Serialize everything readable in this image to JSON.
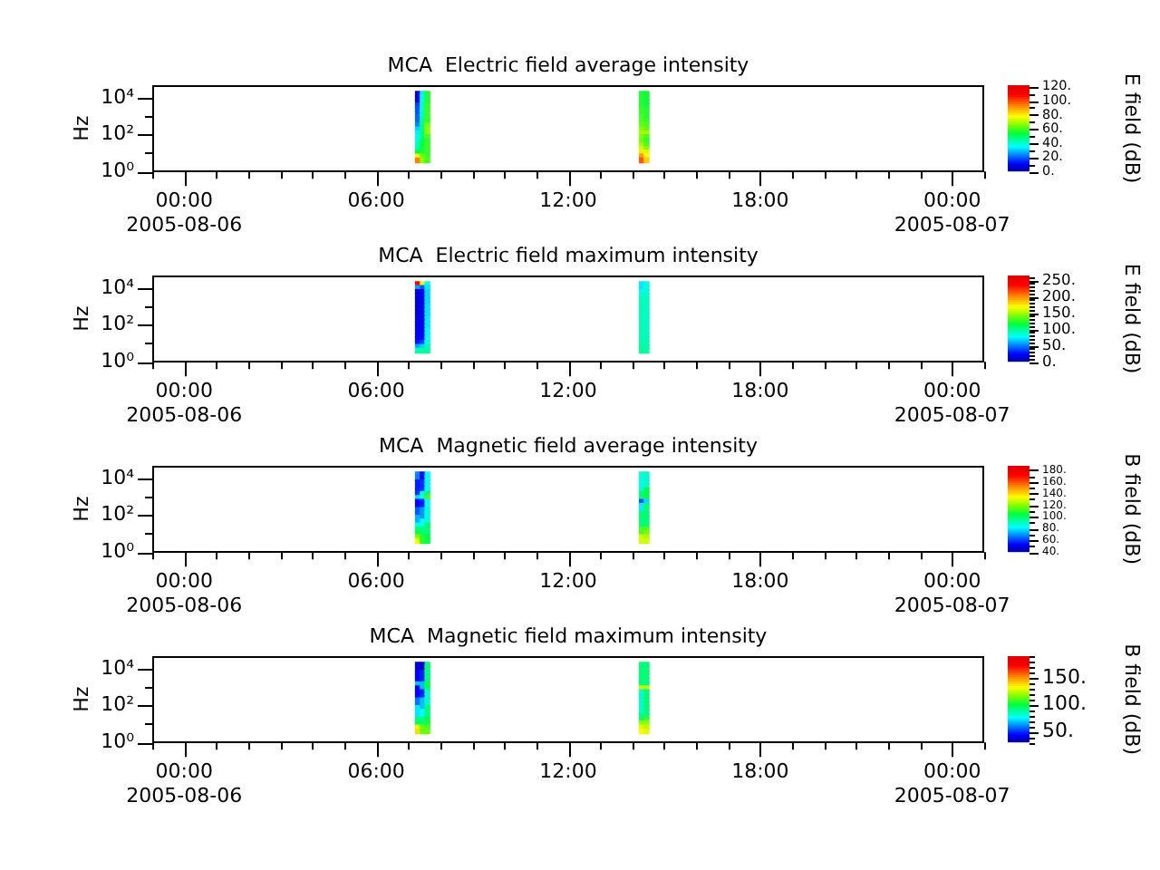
{
  "chart_data": [
    {
      "type": "scatter",
      "title": "MCA  Electric field average intensity",
      "ylabel": "Hz",
      "clabel": "E field (dB)",
      "marker": "square",
      "log": "y",
      "x": [
        "2005-08-06T07:18",
        "2005-08-06T07:18",
        "2005-08-06T07:18",
        "2005-08-06T07:18",
        "2005-08-06T07:18",
        "2005-08-06T07:18",
        "2005-08-06T07:18",
        "2005-08-06T07:18",
        "2005-08-06T07:18",
        "2005-08-06T07:18",
        "2005-08-06T07:18",
        "2005-08-06T07:18",
        "2005-08-06T07:18",
        "2005-08-06T07:18",
        "2005-08-06T07:18",
        "2005-08-06T07:18",
        "2005-08-06T07:18",
        "2005-08-06T07:18",
        "2005-08-06T07:27",
        "2005-08-06T07:27",
        "2005-08-06T07:27",
        "2005-08-06T07:27",
        "2005-08-06T07:27",
        "2005-08-06T07:27",
        "2005-08-06T07:27",
        "2005-08-06T07:27",
        "2005-08-06T07:27",
        "2005-08-06T07:27",
        "2005-08-06T07:27",
        "2005-08-06T07:27",
        "2005-08-06T07:27",
        "2005-08-06T07:27",
        "2005-08-06T07:27",
        "2005-08-06T07:27",
        "2005-08-06T07:27",
        "2005-08-06T07:27",
        "2005-08-06T07:36",
        "2005-08-06T07:36",
        "2005-08-06T07:36",
        "2005-08-06T07:36",
        "2005-08-06T07:36",
        "2005-08-06T07:36",
        "2005-08-06T07:36",
        "2005-08-06T07:36",
        "2005-08-06T07:36",
        "2005-08-06T07:36",
        "2005-08-06T07:36",
        "2005-08-06T07:36",
        "2005-08-06T07:36",
        "2005-08-06T07:36",
        "2005-08-06T07:36",
        "2005-08-06T07:36",
        "2005-08-06T07:36",
        "2005-08-06T07:36",
        "2005-08-06T14:18",
        "2005-08-06T14:18",
        "2005-08-06T14:18",
        "2005-08-06T14:18",
        "2005-08-06T14:18",
        "2005-08-06T14:18",
        "2005-08-06T14:18",
        "2005-08-06T14:18",
        "2005-08-06T14:18",
        "2005-08-06T14:18",
        "2005-08-06T14:18",
        "2005-08-06T14:18",
        "2005-08-06T14:18",
        "2005-08-06T14:18",
        "2005-08-06T14:18",
        "2005-08-06T14:18",
        "2005-08-06T14:18",
        "2005-08-06T14:18",
        "2005-08-06T14:27",
        "2005-08-06T14:27",
        "2005-08-06T14:27",
        "2005-08-06T14:27",
        "2005-08-06T14:27",
        "2005-08-06T14:27",
        "2005-08-06T14:27",
        "2005-08-06T14:27",
        "2005-08-06T14:27",
        "2005-08-06T14:27",
        "2005-08-06T14:27",
        "2005-08-06T14:27",
        "2005-08-06T14:27",
        "2005-08-06T14:27",
        "2005-08-06T14:27",
        "2005-08-06T14:27",
        "2005-08-06T14:27",
        "2005-08-06T14:27"
      ],
      "values": [
        17000,
        10500,
        6400,
        3900,
        2400,
        1500,
        890,
        550,
        330,
        200,
        120,
        76,
        46,
        28,
        17,
        11,
        6.5,
        4.0,
        17000,
        10500,
        6400,
        3900,
        2400,
        1500,
        890,
        550,
        330,
        200,
        120,
        76,
        46,
        28,
        17,
        11,
        6.5,
        4.0,
        17000,
        10500,
        6400,
        3900,
        2400,
        1500,
        890,
        550,
        330,
        200,
        120,
        76,
        46,
        28,
        17,
        11,
        6.5,
        4.0,
        17000,
        10500,
        6400,
        3900,
        2400,
        1500,
        890,
        550,
        330,
        200,
        120,
        76,
        46,
        28,
        17,
        11,
        6.5,
        4.0,
        17000,
        10500,
        6400,
        3900,
        2400,
        1500,
        890,
        550,
        330,
        200,
        120,
        76,
        46,
        28,
        17,
        11,
        6.5,
        4.0
      ],
      "cvalues": [
        8,
        8,
        10,
        18,
        20,
        20,
        22,
        22,
        25,
        32,
        35,
        36,
        40,
        42,
        44,
        55,
        80,
        95,
        35,
        36,
        40,
        42,
        42,
        42,
        44,
        46,
        48,
        48,
        50,
        50,
        52,
        55,
        56,
        58,
        65,
        68,
        58,
        58,
        58,
        60,
        60,
        60,
        60,
        60,
        66,
        68,
        68,
        62,
        60,
        60,
        60,
        60,
        60,
        62,
        58,
        58,
        58,
        58,
        60,
        60,
        62,
        62,
        64,
        68,
        70,
        68,
        66,
        70,
        75,
        82,
        92,
        100,
        56,
        56,
        56,
        56,
        58,
        58,
        58,
        60,
        62,
        64,
        70,
        62,
        60,
        62,
        68,
        76,
        80,
        85
      ],
      "xlim": [
        "2005-08-05T23:00",
        "2005-08-07T01:00"
      ],
      "xticks": [
        {
          "value": "2005-08-05T23:00",
          "label": null
        },
        {
          "value": "2005-08-06T00:00",
          "label": "00:00\n2005-08-06"
        },
        {
          "value": "2005-08-06T01:00",
          "label": null
        },
        {
          "value": "2005-08-06T02:00",
          "label": null
        },
        {
          "value": "2005-08-06T03:00",
          "label": null
        },
        {
          "value": "2005-08-06T04:00",
          "label": null
        },
        {
          "value": "2005-08-06T05:00",
          "label": null
        },
        {
          "value": "2005-08-06T06:00",
          "label": "06:00"
        },
        {
          "value": "2005-08-06T07:00",
          "label": null
        },
        {
          "value": "2005-08-06T08:00",
          "label": null
        },
        {
          "value": "2005-08-06T09:00",
          "label": null
        },
        {
          "value": "2005-08-06T10:00",
          "label": null
        },
        {
          "value": "2005-08-06T11:00",
          "label": null
        },
        {
          "value": "2005-08-06T12:00",
          "label": "12:00"
        },
        {
          "value": "2005-08-06T13:00",
          "label": null
        },
        {
          "value": "2005-08-06T14:00",
          "label": null
        },
        {
          "value": "2005-08-06T15:00",
          "label": null
        },
        {
          "value": "2005-08-06T16:00",
          "label": null
        },
        {
          "value": "2005-08-06T17:00",
          "label": null
        },
        {
          "value": "2005-08-06T18:00",
          "label": "18:00"
        },
        {
          "value": "2005-08-06T19:00",
          "label": null
        },
        {
          "value": "2005-08-06T20:00",
          "label": null
        },
        {
          "value": "2005-08-06T21:00",
          "label": null
        },
        {
          "value": "2005-08-06T22:00",
          "label": null
        },
        {
          "value": "2005-08-06T23:00",
          "label": null
        },
        {
          "value": "2005-08-07T00:00",
          "label": "00:00\n2005-08-07"
        },
        {
          "value": "2005-08-07T01:00",
          "label": null
        }
      ],
      "ylim": [
        1,
        50000
      ],
      "yticks": [
        {
          "value": 1,
          "label": "10⁰"
        },
        {
          "value": 10,
          "label": null
        },
        {
          "value": 100,
          "label": "10²"
        },
        {
          "value": 1000,
          "label": null
        },
        {
          "value": 10000,
          "label": "10⁴"
        }
      ],
      "clim": [
        0,
        122
      ],
      "cticks": [
        {
          "value": 0,
          "label": "0."
        },
        {
          "value": 10,
          "label": null
        },
        {
          "value": 20,
          "label": "20."
        },
        {
          "value": 30,
          "label": null
        },
        {
          "value": 40,
          "label": "40."
        },
        {
          "value": 50,
          "label": null
        },
        {
          "value": 60,
          "label": "60."
        },
        {
          "value": 70,
          "label": null
        },
        {
          "value": 80,
          "label": "80."
        },
        {
          "value": 90,
          "label": null
        },
        {
          "value": 100,
          "label": "100."
        },
        {
          "value": 110,
          "label": null
        },
        {
          "value": 120,
          "label": "120."
        }
      ]
    },
    {
      "type": "scatter",
      "title": "MCA  Electric field maximum intensity",
      "ylabel": "Hz",
      "clabel": "E field (dB)",
      "marker": "square",
      "log": "y",
      "x": [
        "2005-08-06T07:18",
        "2005-08-06T07:18",
        "2005-08-06T07:18",
        "2005-08-06T07:18",
        "2005-08-06T07:18",
        "2005-08-06T07:18",
        "2005-08-06T07:18",
        "2005-08-06T07:18",
        "2005-08-06T07:18",
        "2005-08-06T07:18",
        "2005-08-06T07:18",
        "2005-08-06T07:18",
        "2005-08-06T07:18",
        "2005-08-06T07:18",
        "2005-08-06T07:18",
        "2005-08-06T07:18",
        "2005-08-06T07:18",
        "2005-08-06T07:18",
        "2005-08-06T07:27",
        "2005-08-06T07:27",
        "2005-08-06T07:27",
        "2005-08-06T07:27",
        "2005-08-06T07:27",
        "2005-08-06T07:27",
        "2005-08-06T07:27",
        "2005-08-06T07:27",
        "2005-08-06T07:27",
        "2005-08-06T07:27",
        "2005-08-06T07:27",
        "2005-08-06T07:27",
        "2005-08-06T07:27",
        "2005-08-06T07:27",
        "2005-08-06T07:27",
        "2005-08-06T07:27",
        "2005-08-06T07:27",
        "2005-08-06T07:27",
        "2005-08-06T07:36",
        "2005-08-06T07:36",
        "2005-08-06T07:36",
        "2005-08-06T07:36",
        "2005-08-06T07:36",
        "2005-08-06T07:36",
        "2005-08-06T07:36",
        "2005-08-06T07:36",
        "2005-08-06T07:36",
        "2005-08-06T07:36",
        "2005-08-06T07:36",
        "2005-08-06T07:36",
        "2005-08-06T07:36",
        "2005-08-06T07:36",
        "2005-08-06T07:36",
        "2005-08-06T07:36",
        "2005-08-06T07:36",
        "2005-08-06T07:36",
        "2005-08-06T14:18",
        "2005-08-06T14:18",
        "2005-08-06T14:18",
        "2005-08-06T14:18",
        "2005-08-06T14:18",
        "2005-08-06T14:18",
        "2005-08-06T14:18",
        "2005-08-06T14:18",
        "2005-08-06T14:18",
        "2005-08-06T14:18",
        "2005-08-06T14:18",
        "2005-08-06T14:18",
        "2005-08-06T14:18",
        "2005-08-06T14:18",
        "2005-08-06T14:18",
        "2005-08-06T14:18",
        "2005-08-06T14:18",
        "2005-08-06T14:18",
        "2005-08-06T14:27",
        "2005-08-06T14:27",
        "2005-08-06T14:27",
        "2005-08-06T14:27",
        "2005-08-06T14:27",
        "2005-08-06T14:27",
        "2005-08-06T14:27",
        "2005-08-06T14:27",
        "2005-08-06T14:27",
        "2005-08-06T14:27",
        "2005-08-06T14:27",
        "2005-08-06T14:27",
        "2005-08-06T14:27",
        "2005-08-06T14:27",
        "2005-08-06T14:27",
        "2005-08-06T14:27",
        "2005-08-06T14:27",
        "2005-08-06T14:27"
      ],
      "values": [
        17000,
        10500,
        6400,
        3900,
        2400,
        1500,
        890,
        550,
        330,
        200,
        120,
        76,
        46,
        28,
        17,
        11,
        6.5,
        4.0,
        17000,
        10500,
        6400,
        3900,
        2400,
        1500,
        890,
        550,
        330,
        200,
        120,
        76,
        46,
        28,
        17,
        11,
        6.5,
        4.0,
        17000,
        10500,
        6400,
        3900,
        2400,
        1500,
        890,
        550,
        330,
        200,
        120,
        76,
        46,
        28,
        17,
        11,
        6.5,
        4.0,
        17000,
        10500,
        6400,
        3900,
        2400,
        1500,
        890,
        550,
        330,
        200,
        120,
        76,
        46,
        28,
        17,
        11,
        6.5,
        4.0,
        17000,
        10500,
        6400,
        3900,
        2400,
        1500,
        890,
        550,
        330,
        200,
        120,
        76,
        46,
        28,
        17,
        11,
        6.5,
        4.0
      ],
      "cvalues": [
        240,
        60,
        20,
        18,
        18,
        18,
        18,
        18,
        18,
        20,
        20,
        20,
        22,
        22,
        25,
        30,
        60,
        95,
        170,
        45,
        25,
        22,
        22,
        22,
        22,
        22,
        22,
        24,
        24,
        24,
        25,
        25,
        28,
        40,
        70,
        100,
        80,
        75,
        72,
        72,
        72,
        72,
        74,
        74,
        74,
        76,
        76,
        76,
        78,
        78,
        80,
        85,
        95,
        100,
        75,
        75,
        78,
        90,
        95,
        95,
        95,
        95,
        95,
        95,
        95,
        95,
        95,
        95,
        98,
        98,
        100,
        100,
        85,
        85,
        88,
        90,
        92,
        92,
        92,
        92,
        92,
        92,
        92,
        92,
        92,
        95,
        95,
        95,
        98,
        98
      ],
      "xlim": [
        "2005-08-05T23:00",
        "2005-08-07T01:00"
      ],
      "xticks": [
        {
          "value": "2005-08-05T23:00",
          "label": null
        },
        {
          "value": "2005-08-06T00:00",
          "label": "00:00\n2005-08-06"
        },
        {
          "value": "2005-08-06T01:00",
          "label": null
        },
        {
          "value": "2005-08-06T02:00",
          "label": null
        },
        {
          "value": "2005-08-06T03:00",
          "label": null
        },
        {
          "value": "2005-08-06T04:00",
          "label": null
        },
        {
          "value": "2005-08-06T05:00",
          "label": null
        },
        {
          "value": "2005-08-06T06:00",
          "label": "06:00"
        },
        {
          "value": "2005-08-06T07:00",
          "label": null
        },
        {
          "value": "2005-08-06T08:00",
          "label": null
        },
        {
          "value": "2005-08-06T09:00",
          "label": null
        },
        {
          "value": "2005-08-06T10:00",
          "label": null
        },
        {
          "value": "2005-08-06T11:00",
          "label": null
        },
        {
          "value": "2005-08-06T12:00",
          "label": "12:00"
        },
        {
          "value": "2005-08-06T13:00",
          "label": null
        },
        {
          "value": "2005-08-06T14:00",
          "label": null
        },
        {
          "value": "2005-08-06T15:00",
          "label": null
        },
        {
          "value": "2005-08-06T16:00",
          "label": null
        },
        {
          "value": "2005-08-06T17:00",
          "label": null
        },
        {
          "value": "2005-08-06T18:00",
          "label": "18:00"
        },
        {
          "value": "2005-08-06T19:00",
          "label": null
        },
        {
          "value": "2005-08-06T20:00",
          "label": null
        },
        {
          "value": "2005-08-06T21:00",
          "label": null
        },
        {
          "value": "2005-08-06T22:00",
          "label": null
        },
        {
          "value": "2005-08-06T23:00",
          "label": null
        },
        {
          "value": "2005-08-07T00:00",
          "label": "00:00\n2005-08-07"
        },
        {
          "value": "2005-08-07T01:00",
          "label": null
        }
      ],
      "ylim": [
        1,
        50000
      ],
      "yticks": [
        {
          "value": 1,
          "label": "10⁰"
        },
        {
          "value": 10,
          "label": null
        },
        {
          "value": 100,
          "label": "10²"
        },
        {
          "value": 1000,
          "label": null
        },
        {
          "value": 10000,
          "label": "10⁴"
        }
      ],
      "clim": [
        0,
        265
      ],
      "cticks": [
        {
          "value": 0,
          "label": "0."
        },
        {
          "value": 10,
          "label": null
        },
        {
          "value": 20,
          "label": null
        },
        {
          "value": 30,
          "label": null
        },
        {
          "value": 40,
          "label": null
        },
        {
          "value": 50,
          "label": "50."
        },
        {
          "value": 60,
          "label": null
        },
        {
          "value": 70,
          "label": null
        },
        {
          "value": 80,
          "label": null
        },
        {
          "value": 90,
          "label": null
        },
        {
          "value": 100,
          "label": "100."
        },
        {
          "value": 110,
          "label": null
        },
        {
          "value": 120,
          "label": null
        },
        {
          "value": 130,
          "label": null
        },
        {
          "value": 140,
          "label": null
        },
        {
          "value": 150,
          "label": "150."
        },
        {
          "value": 160,
          "label": null
        },
        {
          "value": 170,
          "label": null
        },
        {
          "value": 180,
          "label": null
        },
        {
          "value": 190,
          "label": null
        },
        {
          "value": 200,
          "label": "200."
        },
        {
          "value": 210,
          "label": null
        },
        {
          "value": 220,
          "label": null
        },
        {
          "value": 230,
          "label": null
        },
        {
          "value": 240,
          "label": null
        },
        {
          "value": 250,
          "label": "250."
        },
        {
          "value": 260,
          "label": null
        }
      ]
    },
    {
      "type": "scatter",
      "title": "MCA  Magnetic field average intensity",
      "ylabel": "Hz",
      "clabel": "B field (dB)",
      "marker": "square",
      "log": "y",
      "x": [
        "2005-08-06T07:18",
        "2005-08-06T07:18",
        "2005-08-06T07:18",
        "2005-08-06T07:18",
        "2005-08-06T07:18",
        "2005-08-06T07:18",
        "2005-08-06T07:18",
        "2005-08-06T07:18",
        "2005-08-06T07:18",
        "2005-08-06T07:18",
        "2005-08-06T07:18",
        "2005-08-06T07:18",
        "2005-08-06T07:18",
        "2005-08-06T07:18",
        "2005-08-06T07:18",
        "2005-08-06T07:18",
        "2005-08-06T07:18",
        "2005-08-06T07:18",
        "2005-08-06T07:27",
        "2005-08-06T07:27",
        "2005-08-06T07:27",
        "2005-08-06T07:27",
        "2005-08-06T07:27",
        "2005-08-06T07:27",
        "2005-08-06T07:27",
        "2005-08-06T07:27",
        "2005-08-06T07:27",
        "2005-08-06T07:27",
        "2005-08-06T07:27",
        "2005-08-06T07:27",
        "2005-08-06T07:27",
        "2005-08-06T07:27",
        "2005-08-06T07:27",
        "2005-08-06T07:27",
        "2005-08-06T07:27",
        "2005-08-06T07:27",
        "2005-08-06T07:36",
        "2005-08-06T07:36",
        "2005-08-06T07:36",
        "2005-08-06T07:36",
        "2005-08-06T07:36",
        "2005-08-06T07:36",
        "2005-08-06T07:36",
        "2005-08-06T07:36",
        "2005-08-06T07:36",
        "2005-08-06T07:36",
        "2005-08-06T07:36",
        "2005-08-06T07:36",
        "2005-08-06T07:36",
        "2005-08-06T07:36",
        "2005-08-06T07:36",
        "2005-08-06T07:36",
        "2005-08-06T07:36",
        "2005-08-06T07:36",
        "2005-08-06T14:18",
        "2005-08-06T14:18",
        "2005-08-06T14:18",
        "2005-08-06T14:18",
        "2005-08-06T14:18",
        "2005-08-06T14:18",
        "2005-08-06T14:18",
        "2005-08-06T14:18",
        "2005-08-06T14:18",
        "2005-08-06T14:18",
        "2005-08-06T14:18",
        "2005-08-06T14:18",
        "2005-08-06T14:18",
        "2005-08-06T14:18",
        "2005-08-06T14:18",
        "2005-08-06T14:18",
        "2005-08-06T14:18",
        "2005-08-06T14:18",
        "2005-08-06T14:27",
        "2005-08-06T14:27",
        "2005-08-06T14:27",
        "2005-08-06T14:27",
        "2005-08-06T14:27",
        "2005-08-06T14:27",
        "2005-08-06T14:27",
        "2005-08-06T14:27",
        "2005-08-06T14:27",
        "2005-08-06T14:27",
        "2005-08-06T14:27",
        "2005-08-06T14:27",
        "2005-08-06T14:27",
        "2005-08-06T14:27",
        "2005-08-06T14:27",
        "2005-08-06T14:27",
        "2005-08-06T14:27",
        "2005-08-06T14:27"
      ],
      "values": [
        17000,
        10500,
        6400,
        3900,
        2400,
        1500,
        890,
        550,
        330,
        200,
        120,
        76,
        46,
        28,
        17,
        11,
        6.5,
        4.0,
        17000,
        10500,
        6400,
        3900,
        2400,
        1500,
        890,
        550,
        330,
        200,
        120,
        76,
        46,
        28,
        17,
        11,
        6.5,
        4.0,
        17000,
        10500,
        6400,
        3900,
        2400,
        1500,
        890,
        550,
        330,
        200,
        120,
        76,
        46,
        28,
        17,
        11,
        6.5,
        4.0,
        17000,
        10500,
        6400,
        3900,
        2400,
        1500,
        890,
        550,
        330,
        200,
        120,
        76,
        46,
        28,
        17,
        11,
        6.5,
        4.0,
        17000,
        10500,
        6400,
        3900,
        2400,
        1500,
        890,
        550,
        330,
        200,
        120,
        76,
        46,
        28,
        17,
        11,
        6.5,
        4.0
      ],
      "cvalues": [
        70,
        70,
        58,
        58,
        58,
        60,
        80,
        55,
        55,
        65,
        65,
        75,
        75,
        85,
        100,
        108,
        120,
        135,
        55,
        55,
        60,
        60,
        60,
        85,
        85,
        58,
        58,
        72,
        72,
        72,
        85,
        85,
        100,
        100,
        110,
        110,
        85,
        85,
        85,
        85,
        85,
        100,
        115,
        85,
        85,
        88,
        88,
        88,
        88,
        100,
        100,
        100,
        105,
        105,
        88,
        88,
        88,
        88,
        88,
        100,
        100,
        65,
        82,
        82,
        100,
        100,
        100,
        100,
        115,
        115,
        130,
        130,
        90,
        90,
        90,
        90,
        105,
        105,
        105,
        80,
        100,
        100,
        100,
        100,
        100,
        100,
        115,
        120,
        125,
        130
      ],
      "xlim": [
        "2005-08-05T23:00",
        "2005-08-07T01:00"
      ],
      "xticks": [
        {
          "value": "2005-08-05T23:00",
          "label": null
        },
        {
          "value": "2005-08-06T00:00",
          "label": "00:00\n2005-08-06"
        },
        {
          "value": "2005-08-06T01:00",
          "label": null
        },
        {
          "value": "2005-08-06T02:00",
          "label": null
        },
        {
          "value": "2005-08-06T03:00",
          "label": null
        },
        {
          "value": "2005-08-06T04:00",
          "label": null
        },
        {
          "value": "2005-08-06T05:00",
          "label": null
        },
        {
          "value": "2005-08-06T06:00",
          "label": "06:00"
        },
        {
          "value": "2005-08-06T07:00",
          "label": null
        },
        {
          "value": "2005-08-06T08:00",
          "label": null
        },
        {
          "value": "2005-08-06T09:00",
          "label": null
        },
        {
          "value": "2005-08-06T10:00",
          "label": null
        },
        {
          "value": "2005-08-06T11:00",
          "label": null
        },
        {
          "value": "2005-08-06T12:00",
          "label": "12:00"
        },
        {
          "value": "2005-08-06T13:00",
          "label": null
        },
        {
          "value": "2005-08-06T14:00",
          "label": null
        },
        {
          "value": "2005-08-06T15:00",
          "label": null
        },
        {
          "value": "2005-08-06T16:00",
          "label": null
        },
        {
          "value": "2005-08-06T17:00",
          "label": null
        },
        {
          "value": "2005-08-06T18:00",
          "label": "18:00"
        },
        {
          "value": "2005-08-06T19:00",
          "label": null
        },
        {
          "value": "2005-08-06T20:00",
          "label": null
        },
        {
          "value": "2005-08-06T21:00",
          "label": null
        },
        {
          "value": "2005-08-06T22:00",
          "label": null
        },
        {
          "value": "2005-08-06T23:00",
          "label": null
        },
        {
          "value": "2005-08-07T00:00",
          "label": "00:00\n2005-08-07"
        },
        {
          "value": "2005-08-07T01:00",
          "label": null
        }
      ],
      "ylim": [
        1,
        50000
      ],
      "yticks": [
        {
          "value": 1,
          "label": "10⁰"
        },
        {
          "value": 10,
          "label": null
        },
        {
          "value": 100,
          "label": "10²"
        },
        {
          "value": 1000,
          "label": null
        },
        {
          "value": 10000,
          "label": "10⁴"
        }
      ],
      "clim": [
        40,
        187
      ],
      "cticks": [
        {
          "value": 40,
          "label": "40."
        },
        {
          "value": 50,
          "label": null
        },
        {
          "value": 60,
          "label": "60."
        },
        {
          "value": 70,
          "label": null
        },
        {
          "value": 80,
          "label": "80."
        },
        {
          "value": 90,
          "label": null
        },
        {
          "value": 100,
          "label": "100."
        },
        {
          "value": 110,
          "label": null
        },
        {
          "value": 120,
          "label": "120."
        },
        {
          "value": 130,
          "label": null
        },
        {
          "value": 140,
          "label": "140."
        },
        {
          "value": 150,
          "label": null
        },
        {
          "value": 160,
          "label": "160."
        },
        {
          "value": 170,
          "label": null
        },
        {
          "value": 180,
          "label": "180."
        }
      ]
    },
    {
      "type": "scatter",
      "title": "MCA  Magnetic field maximum intensity",
      "ylabel": "Hz",
      "clabel": "B field (dB)",
      "marker": "square",
      "log": "y",
      "x": [
        "2005-08-06T07:18",
        "2005-08-06T07:18",
        "2005-08-06T07:18",
        "2005-08-06T07:18",
        "2005-08-06T07:18",
        "2005-08-06T07:18",
        "2005-08-06T07:18",
        "2005-08-06T07:18",
        "2005-08-06T07:18",
        "2005-08-06T07:18",
        "2005-08-06T07:18",
        "2005-08-06T07:18",
        "2005-08-06T07:18",
        "2005-08-06T07:18",
        "2005-08-06T07:18",
        "2005-08-06T07:18",
        "2005-08-06T07:18",
        "2005-08-06T07:18",
        "2005-08-06T07:27",
        "2005-08-06T07:27",
        "2005-08-06T07:27",
        "2005-08-06T07:27",
        "2005-08-06T07:27",
        "2005-08-06T07:27",
        "2005-08-06T07:27",
        "2005-08-06T07:27",
        "2005-08-06T07:27",
        "2005-08-06T07:27",
        "2005-08-06T07:27",
        "2005-08-06T07:27",
        "2005-08-06T07:27",
        "2005-08-06T07:27",
        "2005-08-06T07:27",
        "2005-08-06T07:27",
        "2005-08-06T07:27",
        "2005-08-06T07:27",
        "2005-08-06T07:36",
        "2005-08-06T07:36",
        "2005-08-06T07:36",
        "2005-08-06T07:36",
        "2005-08-06T07:36",
        "2005-08-06T07:36",
        "2005-08-06T07:36",
        "2005-08-06T07:36",
        "2005-08-06T07:36",
        "2005-08-06T07:36",
        "2005-08-06T07:36",
        "2005-08-06T07:36",
        "2005-08-06T07:36",
        "2005-08-06T07:36",
        "2005-08-06T07:36",
        "2005-08-06T07:36",
        "2005-08-06T07:36",
        "2005-08-06T07:36",
        "2005-08-06T14:18",
        "2005-08-06T14:18",
        "2005-08-06T14:18",
        "2005-08-06T14:18",
        "2005-08-06T14:18",
        "2005-08-06T14:18",
        "2005-08-06T14:18",
        "2005-08-06T14:18",
        "2005-08-06T14:18",
        "2005-08-06T14:18",
        "2005-08-06T14:18",
        "2005-08-06T14:18",
        "2005-08-06T14:18",
        "2005-08-06T14:18",
        "2005-08-06T14:18",
        "2005-08-06T14:18",
        "2005-08-06T14:18",
        "2005-08-06T14:18",
        "2005-08-06T14:27",
        "2005-08-06T14:27",
        "2005-08-06T14:27",
        "2005-08-06T14:27",
        "2005-08-06T14:27",
        "2005-08-06T14:27",
        "2005-08-06T14:27",
        "2005-08-06T14:27",
        "2005-08-06T14:27",
        "2005-08-06T14:27",
        "2005-08-06T14:27",
        "2005-08-06T14:27",
        "2005-08-06T14:27",
        "2005-08-06T14:27",
        "2005-08-06T14:27",
        "2005-08-06T14:27",
        "2005-08-06T14:27",
        "2005-08-06T14:27"
      ],
      "values": [
        17000,
        10500,
        6400,
        3900,
        2400,
        1500,
        890,
        550,
        330,
        200,
        120,
        76,
        46,
        28,
        17,
        11,
        6.5,
        4.0,
        17000,
        10500,
        6400,
        3900,
        2400,
        1500,
        890,
        550,
        330,
        200,
        120,
        76,
        46,
        28,
        17,
        11,
        6.5,
        4.0,
        17000,
        10500,
        6400,
        3900,
        2400,
        1500,
        890,
        550,
        330,
        200,
        120,
        76,
        46,
        28,
        17,
        11,
        6.5,
        4.0,
        17000,
        10500,
        6400,
        3900,
        2400,
        1500,
        890,
        550,
        330,
        200,
        120,
        76,
        46,
        28,
        17,
        11,
        6.5,
        4.0,
        17000,
        10500,
        6400,
        3900,
        2400,
        1500,
        890,
        550,
        330,
        200,
        120,
        76,
        46,
        28,
        17,
        11,
        6.5,
        4.0
      ],
      "cvalues": [
        40,
        40,
        45,
        45,
        45,
        70,
        45,
        45,
        45,
        60,
        60,
        75,
        75,
        75,
        95,
        100,
        130,
        140,
        40,
        40,
        50,
        50,
        50,
        70,
        70,
        50,
        50,
        70,
        70,
        70,
        78,
        78,
        95,
        95,
        115,
        115,
        95,
        95,
        95,
        95,
        95,
        100,
        100,
        85,
        85,
        85,
        85,
        95,
        95,
        95,
        100,
        105,
        110,
        115,
        95,
        95,
        95,
        95,
        95,
        95,
        125,
        85,
        85,
        85,
        85,
        85,
        85,
        95,
        95,
        120,
        130,
        135,
        95,
        95,
        95,
        95,
        95,
        95,
        125,
        95,
        95,
        95,
        95,
        95,
        95,
        95,
        110,
        120,
        125,
        130
      ],
      "xlim": [
        "2005-08-05T23:00",
        "2005-08-07T01:00"
      ],
      "xticks": [
        {
          "value": "2005-08-05T23:00",
          "label": null
        },
        {
          "value": "2005-08-06T00:00",
          "label": "00:00\n2005-08-06"
        },
        {
          "value": "2005-08-06T01:00",
          "label": null
        },
        {
          "value": "2005-08-06T02:00",
          "label": null
        },
        {
          "value": "2005-08-06T03:00",
          "label": null
        },
        {
          "value": "2005-08-06T04:00",
          "label": null
        },
        {
          "value": "2005-08-06T05:00",
          "label": null
        },
        {
          "value": "2005-08-06T06:00",
          "label": "06:00"
        },
        {
          "value": "2005-08-06T07:00",
          "label": null
        },
        {
          "value": "2005-08-06T08:00",
          "label": null
        },
        {
          "value": "2005-08-06T09:00",
          "label": null
        },
        {
          "value": "2005-08-06T10:00",
          "label": null
        },
        {
          "value": "2005-08-06T11:00",
          "label": null
        },
        {
          "value": "2005-08-06T12:00",
          "label": "12:00"
        },
        {
          "value": "2005-08-06T13:00",
          "label": null
        },
        {
          "value": "2005-08-06T14:00",
          "label": null
        },
        {
          "value": "2005-08-06T15:00",
          "label": null
        },
        {
          "value": "2005-08-06T16:00",
          "label": null
        },
        {
          "value": "2005-08-06T17:00",
          "label": null
        },
        {
          "value": "2005-08-06T18:00",
          "label": "18:00"
        },
        {
          "value": "2005-08-06T19:00",
          "label": null
        },
        {
          "value": "2005-08-06T20:00",
          "label": null
        },
        {
          "value": "2005-08-06T21:00",
          "label": null
        },
        {
          "value": "2005-08-06T22:00",
          "label": null
        },
        {
          "value": "2005-08-06T23:00",
          "label": null
        },
        {
          "value": "2005-08-07T00:00",
          "label": "00:00\n2005-08-07"
        },
        {
          "value": "2005-08-07T01:00",
          "label": null
        }
      ],
      "ylim": [
        1,
        50000
      ],
      "yticks": [
        {
          "value": 1,
          "label": "10⁰"
        },
        {
          "value": 10,
          "label": null
        },
        {
          "value": 100,
          "label": "10²"
        },
        {
          "value": 1000,
          "label": null
        },
        {
          "value": 10000,
          "label": "10⁴"
        }
      ],
      "clim": [
        30,
        190
      ],
      "cticks": [
        {
          "value": 30,
          "label": null
        },
        {
          "value": 40,
          "label": null
        },
        {
          "value": 50,
          "label": "50."
        },
        {
          "value": 60,
          "label": null
        },
        {
          "value": 70,
          "label": null
        },
        {
          "value": 80,
          "label": null
        },
        {
          "value": 90,
          "label": null
        },
        {
          "value": 100,
          "label": "100."
        },
        {
          "value": 110,
          "label": null
        },
        {
          "value": 120,
          "label": null
        },
        {
          "value": 130,
          "label": null
        },
        {
          "value": 140,
          "label": null
        },
        {
          "value": 150,
          "label": "150."
        },
        {
          "value": 160,
          "label": null
        },
        {
          "value": 170,
          "label": null
        },
        {
          "value": 180,
          "label": null
        },
        {
          "value": 190,
          "label": null
        }
      ]
    }
  ]
}
